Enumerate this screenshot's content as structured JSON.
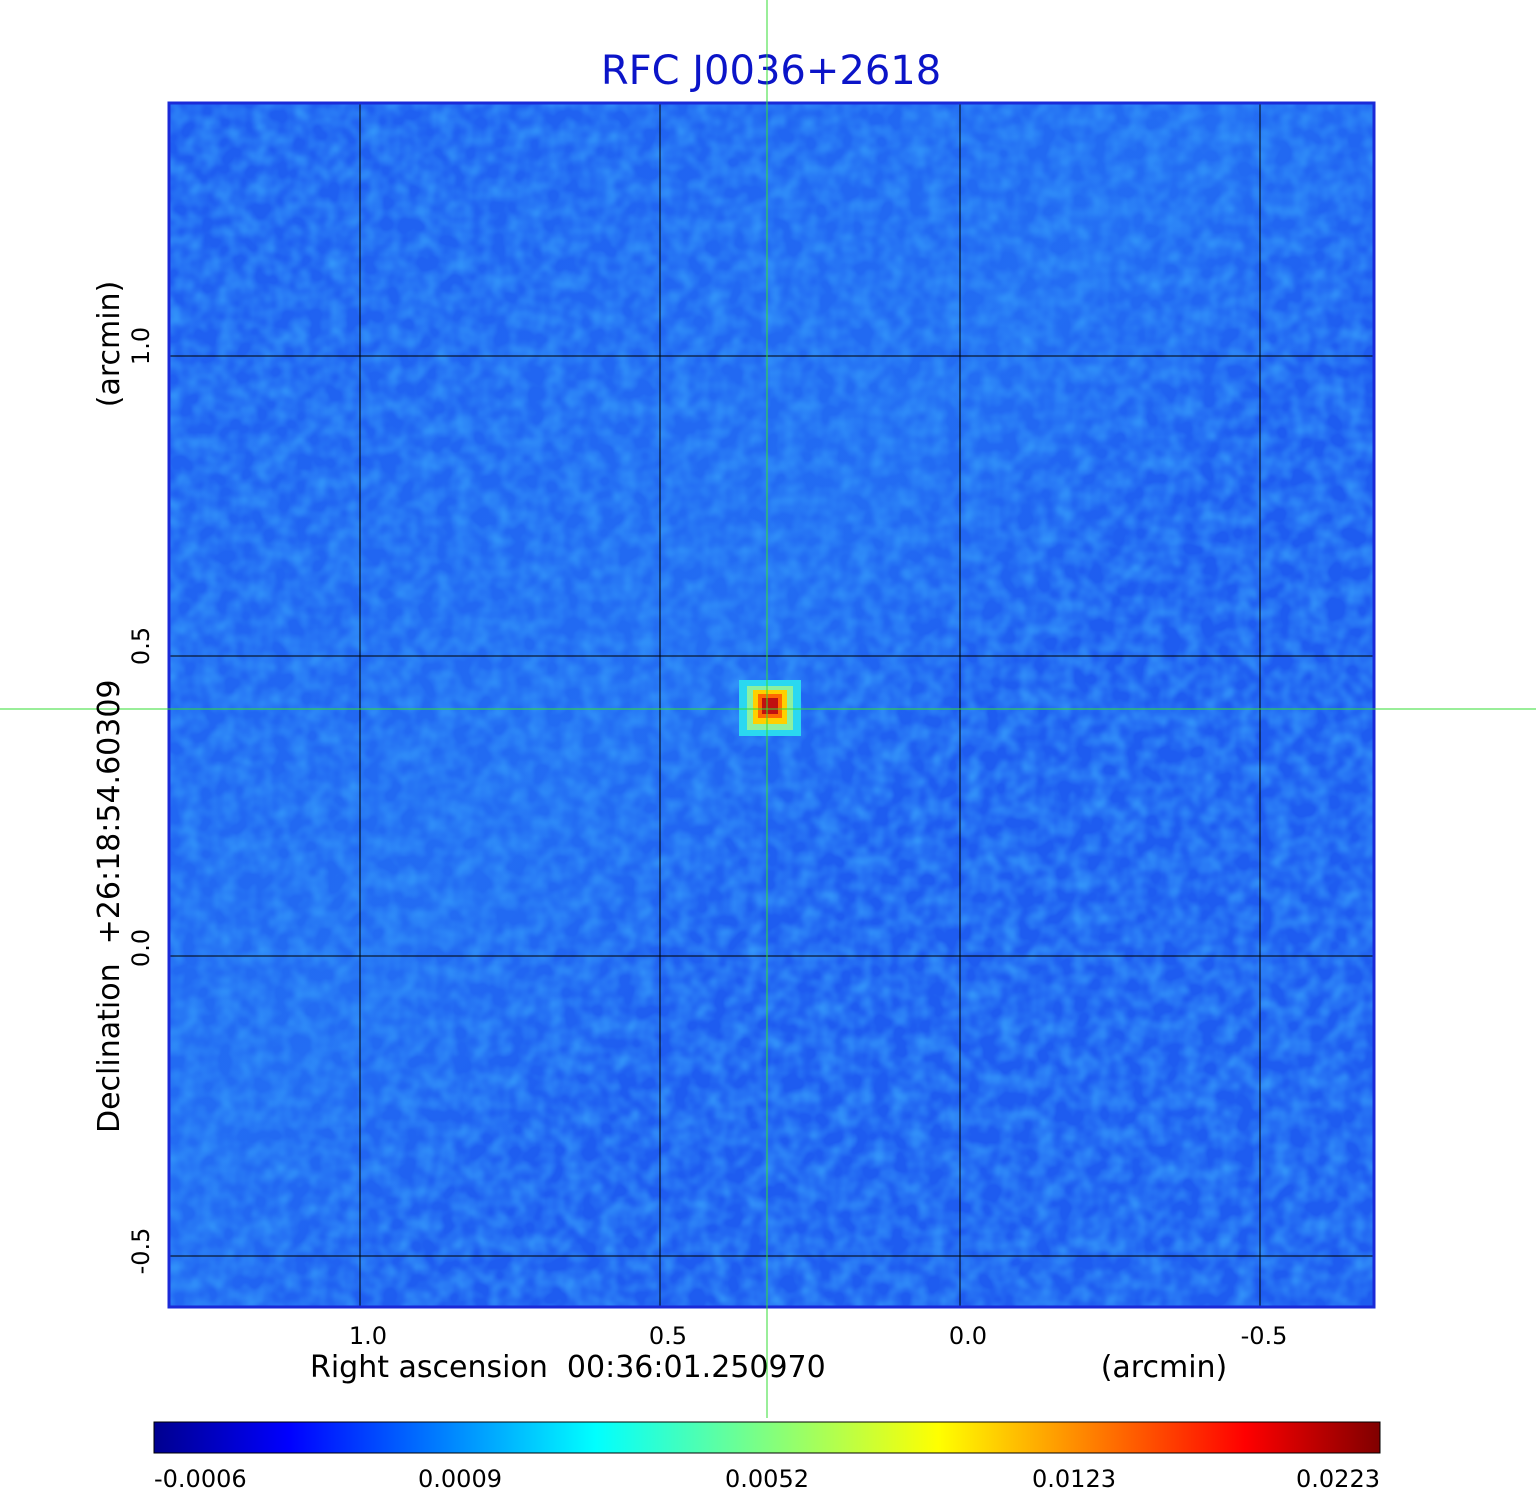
{
  "title": "RFC J0036+2618",
  "x_axis": {
    "label": "Right ascension  00:36:01.250970",
    "unit": "(arcmin)",
    "ticks": [
      "1.0",
      "0.5",
      "0.0",
      "-0.5"
    ]
  },
  "y_axis": {
    "label": "Declination  +26:18:54.60309",
    "unit": "(arcmin)",
    "ticks": [
      "1.0",
      "0.5",
      "0.0",
      "-0.5"
    ]
  },
  "colorbar": {
    "ticks": [
      "-0.0006",
      "0.0009",
      "0.0052",
      "0.0123",
      "0.0223"
    ],
    "colormap": "jet"
  },
  "colors": {
    "title": "#0b14c8",
    "crosshair": "#33dd33",
    "frame": "#1a2ad8",
    "grid": "#000000",
    "background_map": "#1e5cf0"
  },
  "source": {
    "offset_ra_arcmin": 0.32,
    "offset_dec_arcmin": 0.41
  }
}
